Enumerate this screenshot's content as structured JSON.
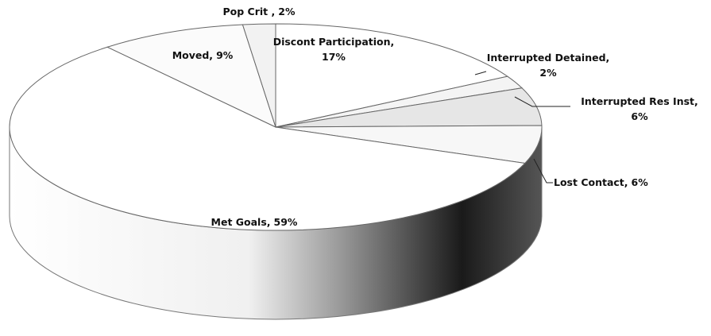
{
  "chart_data": {
    "type": "pie",
    "categories": [
      "Discont Participation,",
      "Interrupted Detained,",
      "Interrupted Res Inst,",
      "Lost Contact,",
      "Met Goals,",
      "Moved,",
      "Pop Crit ,"
    ],
    "values": [
      17,
      2,
      6,
      6,
      59,
      9,
      2
    ],
    "value_labels": [
      "17%",
      "2%",
      "6%",
      "6%",
      "59%",
      "9%",
      "2%"
    ],
    "colors": [
      "#ffffff",
      "#f4f4f4",
      "#e6e6e6",
      "#f7f7f7",
      "#ffffff",
      "#fbfbfb",
      "#f2f2f2"
    ],
    "start_angle": 0,
    "direction": "clockwise",
    "three_d": true
  }
}
